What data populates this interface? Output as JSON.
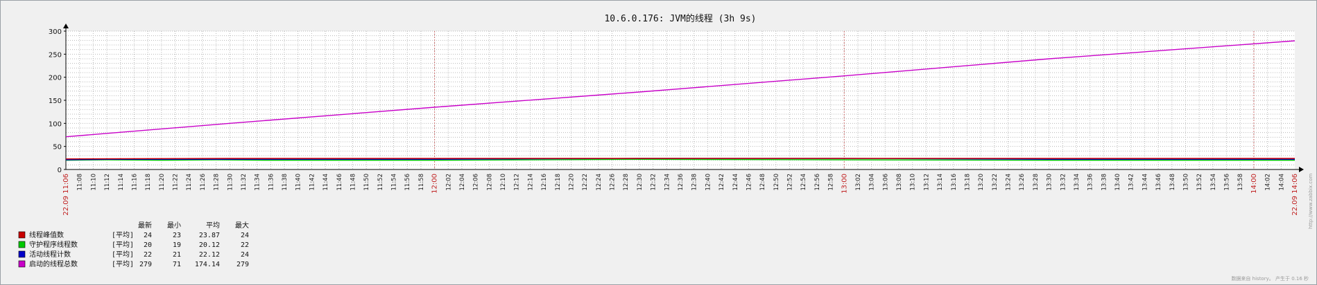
{
  "window": {
    "background": "#f0f0f0"
  },
  "chart_data": {
    "type": "line",
    "title": "10.6.0.176: JVM的线程 (3h 9s)",
    "ylim": [
      0,
      300
    ],
    "yticks": [
      0,
      50,
      100,
      150,
      200,
      250,
      300
    ],
    "grid": true,
    "x_start": "11:06",
    "x_end": "14:06",
    "x_start_label": "22.09 11:06",
    "x_end_label": "22.09 14:06",
    "major_ticks": [
      "12:00",
      "13:00",
      "14:00"
    ],
    "minor_ticks": [
      "11:08",
      "11:10",
      "11:12",
      "11:14",
      "11:16",
      "11:18",
      "11:20",
      "11:22",
      "11:24",
      "11:26",
      "11:28",
      "11:30",
      "11:32",
      "11:34",
      "11:36",
      "11:38",
      "11:40",
      "11:42",
      "11:44",
      "11:46",
      "11:48",
      "11:50",
      "11:52",
      "11:54",
      "11:56",
      "11:58",
      "12:02",
      "12:04",
      "12:06",
      "12:08",
      "12:10",
      "12:12",
      "12:14",
      "12:16",
      "12:18",
      "12:20",
      "12:22",
      "12:24",
      "12:26",
      "12:28",
      "12:30",
      "12:32",
      "12:34",
      "12:36",
      "12:38",
      "12:40",
      "12:42",
      "12:44",
      "12:46",
      "12:48",
      "12:50",
      "12:52",
      "12:54",
      "12:56",
      "12:58",
      "13:02",
      "13:04",
      "13:06",
      "13:08",
      "13:10",
      "13:12",
      "13:14",
      "13:16",
      "13:18",
      "13:20",
      "13:22",
      "13:24",
      "13:26",
      "13:28",
      "13:30",
      "13:32",
      "13:34",
      "13:36",
      "13:38",
      "13:40",
      "13:42",
      "13:44",
      "13:46",
      "13:48",
      "13:50",
      "13:52",
      "13:54",
      "13:56",
      "13:58",
      "14:02",
      "14:04"
    ],
    "series": [
      {
        "name": "线程峰值数",
        "color": "#c80000",
        "x": [
          "11:06",
          "11:30",
          "12:00",
          "12:30",
          "13:00",
          "13:30",
          "14:06"
        ],
        "values": [
          23,
          24,
          24,
          24,
          24,
          24,
          24
        ]
      },
      {
        "name": "守护程序线程数",
        "color": "#00c800",
        "x": [
          "11:06",
          "11:12",
          "11:20",
          "11:28",
          "11:36",
          "12:00",
          "12:30",
          "13:00",
          "13:30",
          "14:06"
        ],
        "values": [
          20,
          21,
          20,
          21,
          20,
          20,
          22,
          21,
          20,
          20
        ]
      },
      {
        "name": "活动线程计数",
        "color": "#0000c8",
        "x": [
          "11:06",
          "11:12",
          "11:20",
          "11:28",
          "11:36",
          "12:00",
          "12:30",
          "13:00",
          "13:30",
          "14:06"
        ],
        "values": [
          21,
          22,
          22,
          22,
          22,
          22,
          24,
          24,
          22,
          22
        ]
      },
      {
        "name": "启动的线程总数",
        "color": "#c800c8",
        "x": [
          "11:06",
          "11:30",
          "12:00",
          "12:30",
          "13:00",
          "13:30",
          "14:06"
        ],
        "values": [
          71,
          100,
          135,
          168,
          203,
          240,
          279
        ]
      }
    ]
  },
  "legend": {
    "headers": {
      "last": "最新",
      "min": "最小",
      "avg": "平均",
      "max": "最大"
    },
    "rows": [
      {
        "color": "#c80000",
        "name": "线程峰值数",
        "func": "[平均]",
        "last": "24",
        "min": "23",
        "avg": "23.87",
        "max": "24"
      },
      {
        "color": "#00c800",
        "name": "守护程序线程数",
        "func": "[平均]",
        "last": "20",
        "min": "19",
        "avg": "20.12",
        "max": "22"
      },
      {
        "color": "#0000c8",
        "name": "活动线程计数",
        "func": "[平均]",
        "last": "22",
        "min": "21",
        "avg": "22.12",
        "max": "24"
      },
      {
        "color": "#c800c8",
        "name": "启动的线程总数",
        "func": "[平均]",
        "last": "279",
        "min": "71",
        "avg": "174.14",
        "max": "279"
      }
    ]
  },
  "watermark": {
    "side": "http://www.zabbix.com",
    "footer": "数据来自 history。 产生于 0.16 秒"
  }
}
